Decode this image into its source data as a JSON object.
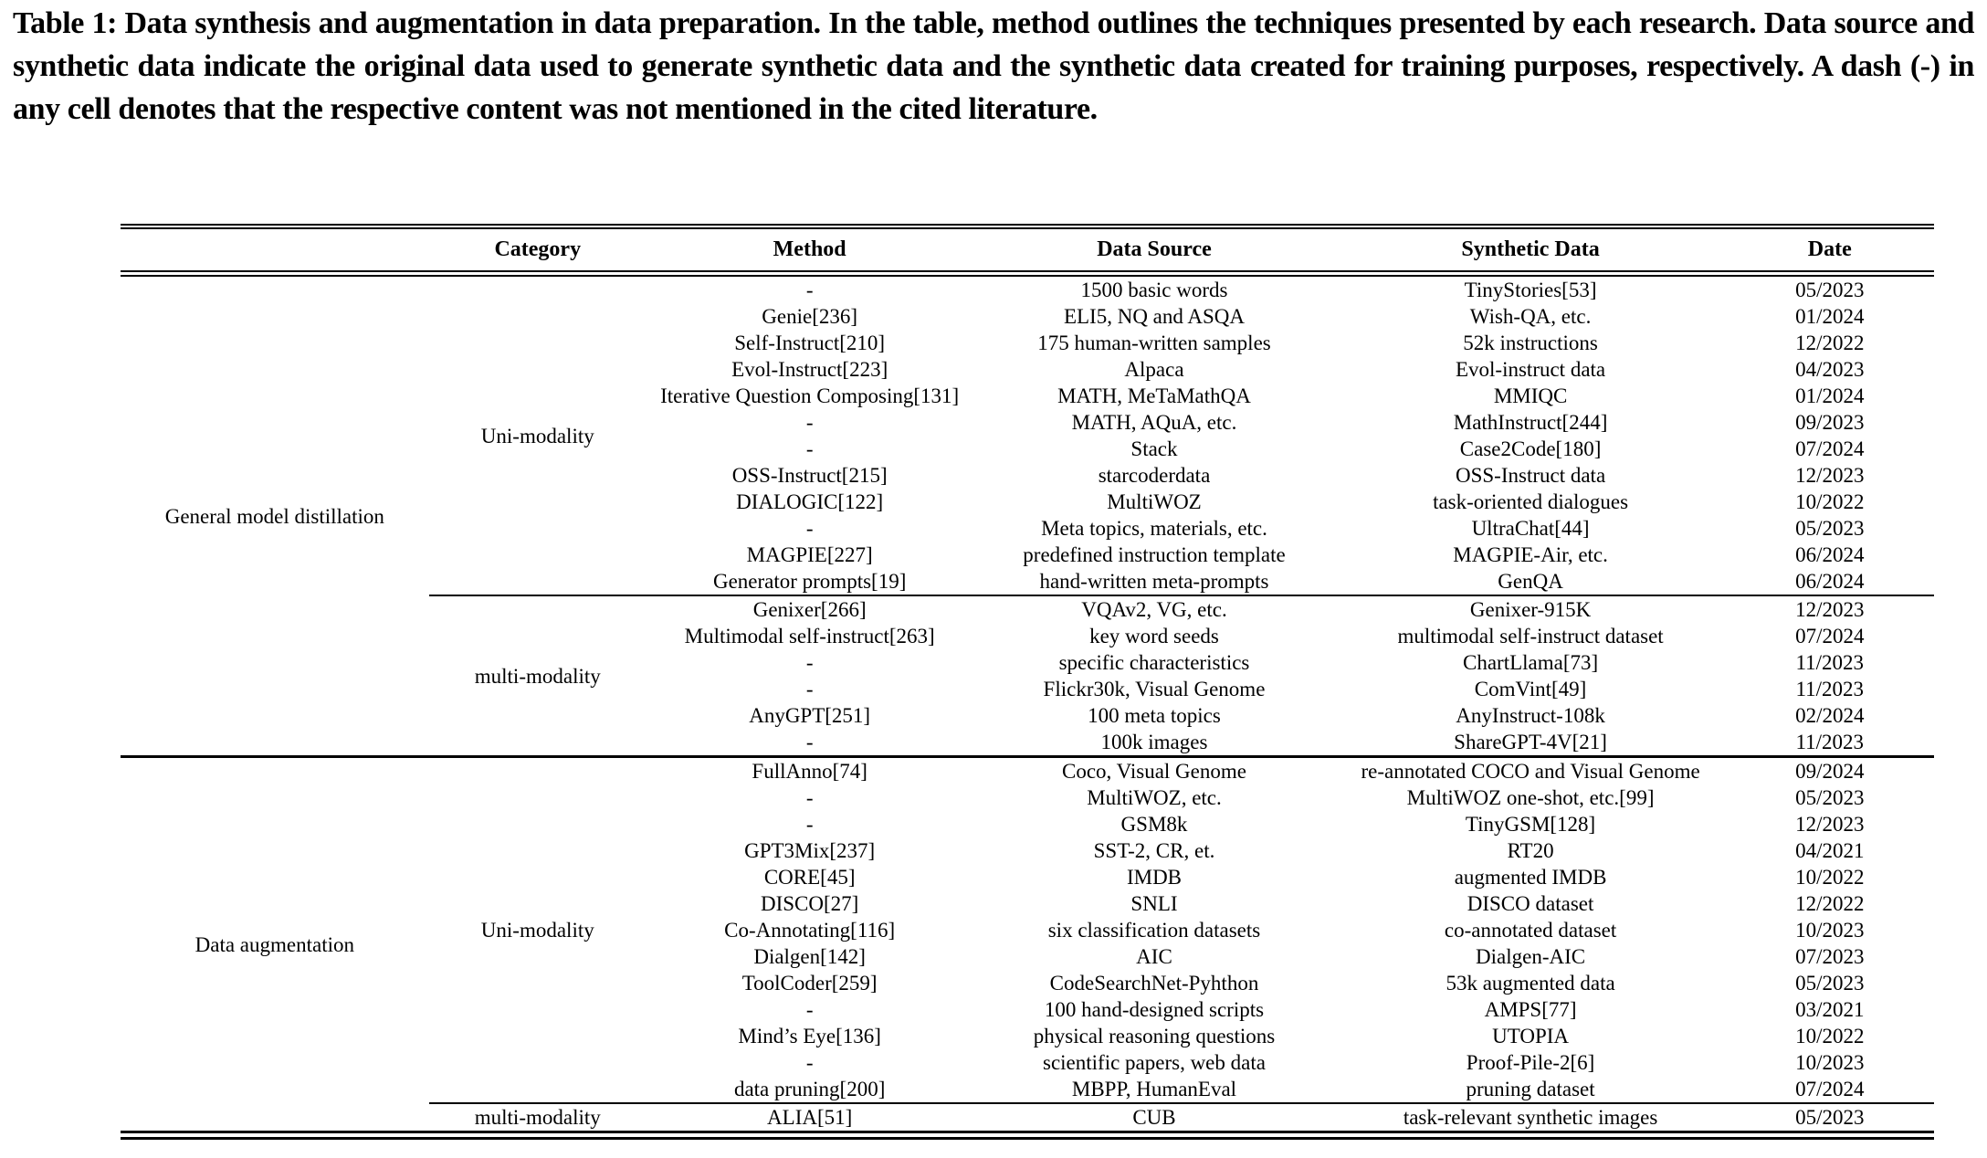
{
  "colors": {
    "text": "#000000",
    "background": "#ffffff"
  },
  "caption": {
    "text": "Table 1: Data synthesis and augmentation in data preparation. In the table, method outlines the techniques presented by each research. Data source and synthetic data indicate the original data used to generate synthetic data and the synthetic data created for training purposes, respectively. A dash (-) in any cell denotes that the respective content was not mentioned in the cited literature."
  },
  "table": {
    "headers": [
      "Category",
      "Method",
      "Data Source",
      "Synthetic Data",
      "Date"
    ],
    "groups": [
      {
        "label": "General model distillation",
        "subgroups": [
          {
            "category": "Uni-modality",
            "rows": [
              {
                "method": "-",
                "data_source": "1500 basic words",
                "synthetic_data": "TinyStories[53]",
                "date": "05/2023"
              },
              {
                "method": "Genie[236]",
                "data_source": "ELI5, NQ and ASQA",
                "synthetic_data": "Wish-QA, etc.",
                "date": "01/2024"
              },
              {
                "method": "Self-Instruct[210]",
                "data_source": "175 human-written samples",
                "synthetic_data": "52k instructions",
                "date": "12/2022"
              },
              {
                "method": "Evol-Instruct[223]",
                "data_source": "Alpaca",
                "synthetic_data": "Evol-instruct data",
                "date": "04/2023"
              },
              {
                "method": "Iterative Question Composing[131]",
                "data_source": "MATH, MeTaMathQA",
                "synthetic_data": "MMIQC",
                "date": "01/2024"
              },
              {
                "method": "-",
                "data_source": "MATH, AQuA, etc.",
                "synthetic_data": "MathInstruct[244]",
                "date": "09/2023"
              },
              {
                "method": "-",
                "data_source": "Stack",
                "synthetic_data": "Case2Code[180]",
                "date": "07/2024"
              },
              {
                "method": "OSS-Instruct[215]",
                "data_source": "starcoderdata",
                "synthetic_data": "OSS-Instruct data",
                "date": "12/2023"
              },
              {
                "method": "DIALOGIC[122]",
                "data_source": "MultiWOZ",
                "synthetic_data": "task-oriented dialogues",
                "date": "10/2022"
              },
              {
                "method": "-",
                "data_source": "Meta topics, materials, etc.",
                "synthetic_data": "UltraChat[44]",
                "date": "05/2023"
              },
              {
                "method": "MAGPIE[227]",
                "data_source": "predefined instruction template",
                "synthetic_data": "MAGPIE-Air, etc.",
                "date": "06/2024"
              },
              {
                "method": "Generator prompts[19]",
                "data_source": "hand-written meta-prompts",
                "synthetic_data": "GenQA",
                "date": "06/2024"
              }
            ]
          },
          {
            "category": "multi-modality",
            "rows": [
              {
                "method": "Genixer[266]",
                "data_source": "VQAv2, VG, etc.",
                "synthetic_data": "Genixer-915K",
                "date": "12/2023"
              },
              {
                "method": "Multimodal self-instruct[263]",
                "data_source": "key word seeds",
                "synthetic_data": "multimodal self-instruct dataset",
                "date": "07/2024"
              },
              {
                "method": "-",
                "data_source": "specific characteristics",
                "synthetic_data": "ChartLlama[73]",
                "date": "11/2023"
              },
              {
                "method": "-",
                "data_source": "Flickr30k, Visual Genome",
                "synthetic_data": "ComVint[49]",
                "date": "11/2023"
              },
              {
                "method": "AnyGPT[251]",
                "data_source": "100 meta topics",
                "synthetic_data": "AnyInstruct-108k",
                "date": "02/2024"
              },
              {
                "method": "-",
                "data_source": "100k images",
                "synthetic_data": "ShareGPT-4V[21]",
                "date": "11/2023"
              }
            ]
          }
        ]
      },
      {
        "label": "Data augmentation",
        "subgroups": [
          {
            "category": "Uni-modality",
            "rows": [
              {
                "method": "FullAnno[74]",
                "data_source": "Coco, Visual Genome",
                "synthetic_data": "re-annotated COCO and Visual Genome",
                "date": "09/2024"
              },
              {
                "method": "-",
                "data_source": "MultiWOZ, etc.",
                "synthetic_data": "MultiWOZ one-shot, etc.[99]",
                "date": "05/2023"
              },
              {
                "method": "-",
                "data_source": "GSM8k",
                "synthetic_data": "TinyGSM[128]",
                "date": "12/2023"
              },
              {
                "method": "GPT3Mix[237]",
                "data_source": "SST-2, CR, et.",
                "synthetic_data": "RT20",
                "date": "04/2021"
              },
              {
                "method": "CORE[45]",
                "data_source": "IMDB",
                "synthetic_data": "augmented IMDB",
                "date": "10/2022"
              },
              {
                "method": "DISCO[27]",
                "data_source": "SNLI",
                "synthetic_data": "DISCO dataset",
                "date": "12/2022"
              },
              {
                "method": "Co-Annotating[116]",
                "data_source": "six classification datasets",
                "synthetic_data": "co-annotated dataset",
                "date": "10/2023"
              },
              {
                "method": "Dialgen[142]",
                "data_source": "AIC",
                "synthetic_data": "Dialgen-AIC",
                "date": "07/2023"
              },
              {
                "method": "ToolCoder[259]",
                "data_source": "CodeSearchNet-Pyhthon",
                "synthetic_data": "53k augmented data",
                "date": "05/2023"
              },
              {
                "method": "-",
                "data_source": "100 hand-designed scripts",
                "synthetic_data": "AMPS[77]",
                "date": "03/2021"
              },
              {
                "method": "Mind’s Eye[136]",
                "data_source": "physical reasoning questions",
                "synthetic_data": "UTOPIA",
                "date": "10/2022"
              },
              {
                "method": "-",
                "data_source": "scientific papers, web data",
                "synthetic_data": "Proof-Pile-2[6]",
                "date": "10/2023"
              },
              {
                "method": "data pruning[200]",
                "data_source": "MBPP, HumanEval",
                "synthetic_data": "pruning dataset",
                "date": "07/2024"
              }
            ]
          },
          {
            "category": "multi-modality",
            "rows": [
              {
                "method": "ALIA[51]",
                "data_source": "CUB",
                "synthetic_data": "task-relevant synthetic images",
                "date": "05/2023"
              }
            ]
          }
        ]
      }
    ]
  }
}
